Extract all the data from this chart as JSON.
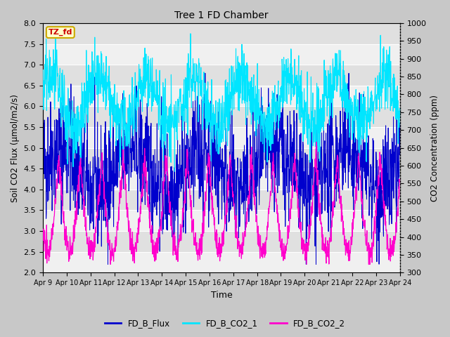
{
  "title": "Tree 1 FD Chamber",
  "xlabel": "Time",
  "ylabel_left": "Soil CO2 Flux (μmol/m2/s)",
  "ylabel_right": "CO2 Concentration (ppm)",
  "ylim_left": [
    2.0,
    8.0
  ],
  "ylim_right": [
    300,
    1000
  ],
  "annotation_text": "TZ_fd",
  "annotation_color": "#cc0000",
  "annotation_bg": "#ffffcc",
  "annotation_border": "#ccaa00",
  "x_tick_labels": [
    "Apr 9",
    "Apr 10",
    "Apr 11",
    "Apr 12",
    "Apr 13",
    "Apr 14",
    "Apr 15",
    "Apr 16",
    "Apr 17",
    "Apr 18",
    "Apr 19",
    "Apr 20",
    "Apr 21",
    "Apr 22",
    "Apr 23",
    "Apr 24"
  ],
  "colors": {
    "FD_B_Flux": "#0000cd",
    "FD_B_CO2_1": "#00e5ff",
    "FD_B_CO2_2": "#ff00cc"
  },
  "legend_labels": [
    "FD_B_Flux",
    "FD_B_CO2_1",
    "FD_B_CO2_2"
  ],
  "fig_bg": "#c8c8c8",
  "plot_bg": "#f0f0f0",
  "band_light": "#f0f0f0",
  "band_dark": "#e0e0e0",
  "grid_color": "#ffffff",
  "seed": 42,
  "n_days": 15,
  "n_points_per_day": 96
}
